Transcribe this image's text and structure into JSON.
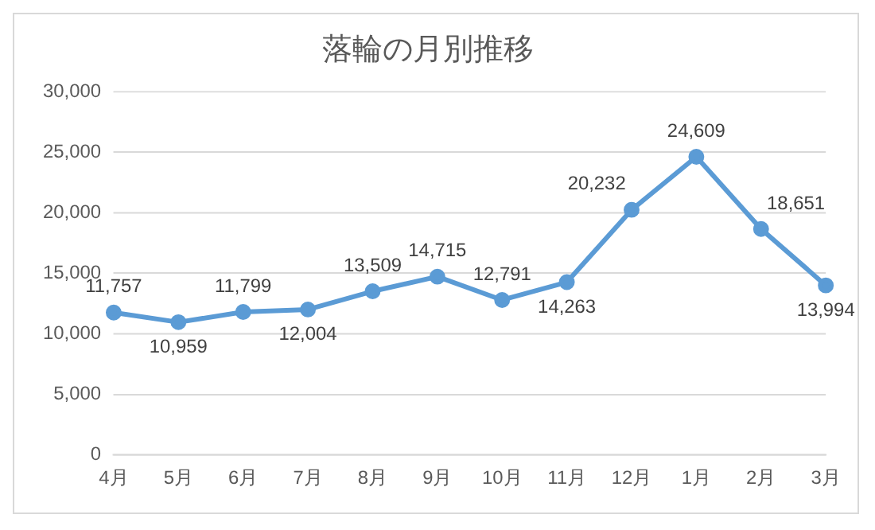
{
  "chart_data": {
    "type": "line",
    "title": "落輪の月別推移",
    "categories": [
      "4月",
      "5月",
      "6月",
      "7月",
      "8月",
      "9月",
      "10月",
      "11月",
      "12月",
      "1月",
      "2月",
      "3月"
    ],
    "series": [
      {
        "color": "#5b9bd5",
        "values": [
          11757,
          10959,
          11799,
          12004,
          13509,
          14715,
          12791,
          14263,
          20232,
          24609,
          18651,
          13994
        ],
        "value_labels": [
          "11,757",
          "10,959",
          "11,799",
          "12,004",
          "13,509",
          "14,715",
          "12,791",
          "14,263",
          "20,232",
          "24,609",
          "18,651",
          "13,994"
        ]
      }
    ],
    "ylim": [
      0,
      30000
    ],
    "yticks": [
      0,
      {
        "value": 5000,
        "label": "5,000"
      },
      {
        "value": 10000,
        "label": "10,000"
      },
      {
        "value": 15000,
        "label": "15,000"
      },
      {
        "value": 20000,
        "label": "20,000"
      },
      {
        "value": 25000,
        "label": "25,000"
      },
      {
        "value": 30000,
        "label": "30,000"
      }
    ],
    "grid": "y",
    "legend": false,
    "marker": "circle",
    "line_style": "solid"
  }
}
